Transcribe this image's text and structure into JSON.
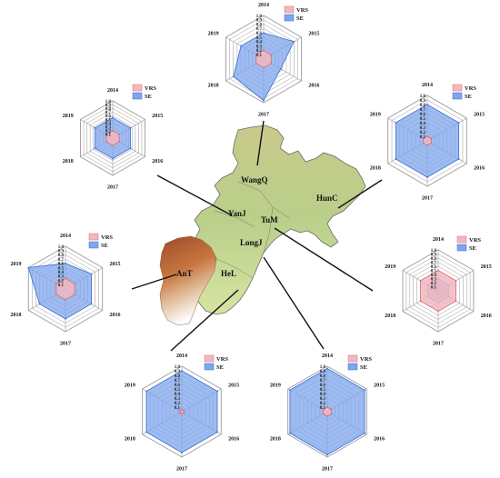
{
  "figure": {
    "legend_labels": [
      "VRS",
      "SE"
    ],
    "axis_years": [
      "2014",
      "2015",
      "2016",
      "2017",
      "2018",
      "2019"
    ],
    "radial_ticks": [
      "0.1",
      "0.2",
      "0.3",
      "0.4",
      "0.5",
      "0.6",
      "0.7",
      "0.8",
      "0.9",
      "1.0"
    ],
    "colors": {
      "vrs_fill": "#f2b8c0",
      "vrs_stroke": "#d96b7a",
      "se_fill": "#7ea6ec",
      "se_stroke": "#3a6fd8",
      "grid": "#9a9a9a",
      "leader_line": "#111111"
    }
  },
  "map": {
    "regions": [
      "WangQ",
      "HunC",
      "YanJ",
      "TuM",
      "LongJ",
      "AnT",
      "HeL"
    ]
  },
  "chart_data": [
    {
      "type": "radar",
      "region": "WangQ",
      "axes": [
        "2014",
        "2015",
        "2016",
        "2017",
        "2018",
        "2019"
      ],
      "rlim": [
        0,
        1
      ],
      "series": [
        {
          "name": "VRS",
          "values": [
            0.2,
            0.2,
            0.2,
            0.2,
            0.2,
            0.2
          ]
        },
        {
          "name": "SE",
          "values": [
            0.6,
            0.8,
            0.45,
            0.95,
            0.8,
            0.6
          ]
        }
      ]
    },
    {
      "type": "radar",
      "region": "YanJ",
      "axes": [
        "2014",
        "2015",
        "2016",
        "2017",
        "2018",
        "2019"
      ],
      "rlim": [
        0,
        1
      ],
      "series": [
        {
          "name": "VRS",
          "values": [
            0.2,
            0.2,
            0.2,
            0.2,
            0.2,
            0.2
          ]
        },
        {
          "name": "SE",
          "values": [
            0.55,
            0.55,
            0.55,
            0.55,
            0.55,
            0.55
          ]
        }
      ]
    },
    {
      "type": "radar",
      "region": "HunC",
      "axes": [
        "2014",
        "2015",
        "2016",
        "2017",
        "2018",
        "2019"
      ],
      "rlim": [
        0,
        1
      ],
      "series": [
        {
          "name": "VRS",
          "values": [
            0.1,
            0.1,
            0.1,
            0.1,
            0.1,
            0.1
          ]
        },
        {
          "name": "SE",
          "values": [
            0.8,
            0.8,
            0.8,
            0.8,
            0.8,
            0.8
          ]
        }
      ]
    },
    {
      "type": "radar",
      "region": "AnT",
      "axes": [
        "2014",
        "2015",
        "2016",
        "2017",
        "2018",
        "2019"
      ],
      "rlim": [
        0,
        1
      ],
      "series": [
        {
          "name": "VRS",
          "values": [
            0.25,
            0.25,
            0.25,
            0.25,
            0.25,
            0.25
          ]
        },
        {
          "name": "SE",
          "values": [
            0.6,
            0.7,
            0.7,
            0.7,
            0.7,
            1.0
          ]
        }
      ]
    },
    {
      "type": "radar",
      "region": "TuM",
      "axes": [
        "2014",
        "2015",
        "2016",
        "2017",
        "2018",
        "2019"
      ],
      "rlim": [
        0,
        1
      ],
      "series": [
        {
          "name": "VRS",
          "values": [
            0.5,
            0.5,
            0.5,
            0.5,
            0.5,
            0.5
          ]
        },
        {
          "name": "SE",
          "values": [
            0.3,
            0.3,
            0.3,
            0.3,
            0.3,
            0.3
          ]
        }
      ]
    },
    {
      "type": "radar",
      "region": "HeL",
      "axes": [
        "2014",
        "2015",
        "2016",
        "2017",
        "2018",
        "2019"
      ],
      "rlim": [
        0,
        1
      ],
      "series": [
        {
          "name": "VRS",
          "values": [
            0.05,
            0.05,
            0.05,
            0.05,
            0.05,
            0.05
          ]
        },
        {
          "name": "SE",
          "values": [
            0.9,
            0.9,
            0.9,
            0.9,
            0.9,
            0.9
          ]
        }
      ]
    },
    {
      "type": "radar",
      "region": "LongJ",
      "axes": [
        "2014",
        "2015",
        "2016",
        "2017",
        "2018",
        "2019"
      ],
      "rlim": [
        0,
        1
      ],
      "series": [
        {
          "name": "VRS",
          "values": [
            0.1,
            0.1,
            0.1,
            0.1,
            0.1,
            0.1
          ]
        },
        {
          "name": "SE",
          "values": [
            0.95,
            0.95,
            0.95,
            0.95,
            0.95,
            0.95
          ]
        }
      ]
    }
  ]
}
